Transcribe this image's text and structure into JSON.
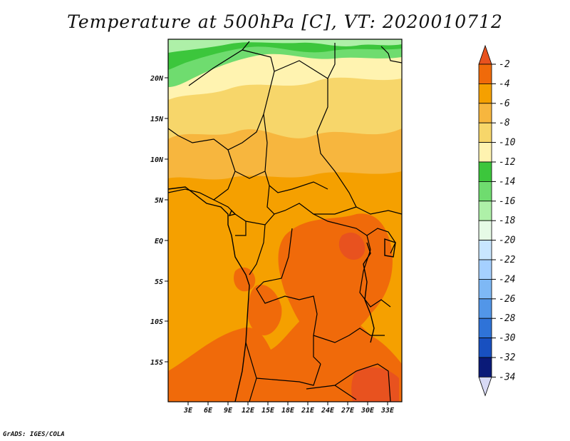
{
  "title": "Temperature at 500hPa [C], VT: 2020010712",
  "credit": "GrADS: IGES/COLA",
  "map": {
    "region": "Central Africa",
    "lat_labels": [
      "20N",
      "15N",
      "10N",
      "5N",
      "EQ",
      "5S",
      "10S",
      "15S"
    ],
    "lon_labels": [
      "3E",
      "6E",
      "9E",
      "12E",
      "15E",
      "18E",
      "21E",
      "24E",
      "27E",
      "30E",
      "33E"
    ],
    "lat_range": [
      -20,
      25
    ],
    "lon_range": [
      0,
      35
    ]
  },
  "colorbar": {
    "labels": [
      "-2",
      "-4",
      "-6",
      "-8",
      "-10",
      "-12",
      "-14",
      "-16",
      "-18",
      "-20",
      "-22",
      "-24",
      "-26",
      "-28",
      "-30",
      "-32",
      "-34"
    ],
    "colors": [
      "#e8521f",
      "#f06a0a",
      "#f5a000",
      "#f7b63e",
      "#f7d66a",
      "#fff3b0",
      "#3cc63c",
      "#6fdc6f",
      "#aef0a8",
      "#e6fae6",
      "#c8e6ff",
      "#a5d0ff",
      "#7eb8f5",
      "#5296e8",
      "#2f73d8",
      "#1850c0",
      "#0a1a78",
      "#d8daf5"
    ]
  }
}
